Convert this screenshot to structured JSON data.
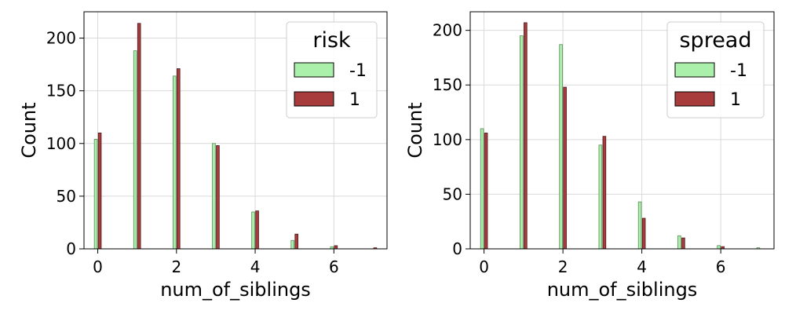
{
  "chart_data": [
    {
      "type": "bar",
      "xlabel": "num_of_siblings",
      "ylabel": "Count",
      "xticks": [
        "0",
        "2",
        "4",
        "6"
      ],
      "yticks": [
        "0",
        "50",
        "100",
        "150",
        "200"
      ],
      "xlim": [
        -0.35,
        7.35
      ],
      "ylim": [
        0,
        225
      ],
      "grid": true,
      "legend": {
        "title": "risk",
        "placement": "top-right"
      },
      "series": [
        {
          "name": "-1",
          "color": "#aaf0aa",
          "x": [
            0,
            1,
            2,
            3,
            4,
            5,
            6
          ],
          "values": [
            104,
            188,
            164,
            100,
            35,
            8,
            2
          ]
        },
        {
          "name": "1",
          "color": "#a83c3c",
          "x": [
            0,
            1,
            2,
            3,
            4,
            5,
            6,
            7
          ],
          "values": [
            110,
            214,
            171,
            98,
            36,
            14,
            3,
            1
          ]
        }
      ]
    },
    {
      "type": "bar",
      "xlabel": "num_of_siblings",
      "ylabel": "Count",
      "xticks": [
        "0",
        "2",
        "4",
        "6"
      ],
      "yticks": [
        "0",
        "50",
        "100",
        "150",
        "200"
      ],
      "xlim": [
        -0.35,
        7.35
      ],
      "ylim": [
        0,
        217
      ],
      "grid": true,
      "legend": {
        "title": "spread",
        "placement": "top-right"
      },
      "series": [
        {
          "name": "-1",
          "color": "#aaf0aa",
          "x": [
            0,
            1,
            2,
            3,
            4,
            5,
            6,
            7
          ],
          "values": [
            110,
            195,
            187,
            95,
            43,
            12,
            3,
            1
          ]
        },
        {
          "name": "1",
          "color": "#a83c3c",
          "x": [
            0,
            1,
            2,
            3,
            4,
            5,
            6
          ],
          "values": [
            106,
            207,
            148,
            103,
            28,
            10,
            2
          ]
        }
      ]
    }
  ]
}
